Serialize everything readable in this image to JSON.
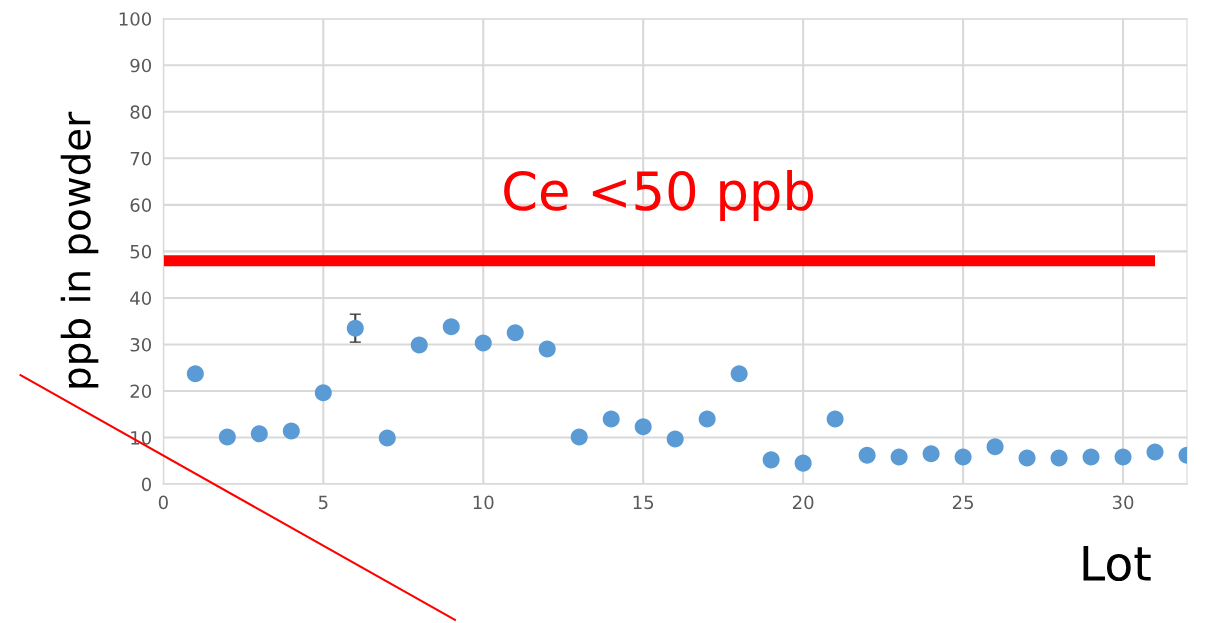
{
  "chart_data": {
    "type": "scatter",
    "xlabel": "Lot",
    "ylabel": "ppb in powder",
    "x": [
      1,
      2,
      3,
      4,
      5,
      6,
      7,
      8,
      9,
      10,
      11,
      12,
      13,
      14,
      15,
      16,
      17,
      18,
      19,
      20,
      21,
      22,
      23,
      24,
      25,
      26,
      27,
      28,
      29,
      30,
      31,
      32
    ],
    "series": [
      {
        "color": "#5b9bd5",
        "values": [
          23.7,
          10.1,
          10.8,
          11.4,
          19.6,
          33.5,
          9.9,
          29.9,
          33.8,
          30.3,
          32.5,
          29.0,
          10.1,
          14.0,
          12.3,
          9.7,
          14.0,
          23.7,
          5.2,
          4.5,
          14.0,
          6.2,
          5.8,
          6.5,
          5.8,
          8.0,
          5.6,
          5.6,
          5.8,
          5.8,
          6.9,
          6.2
        ],
        "errors": [
          null,
          null,
          null,
          null,
          null,
          3,
          null,
          null,
          null,
          null,
          null,
          null,
          null,
          null,
          null,
          null,
          null,
          null,
          null,
          null,
          null,
          null,
          null,
          null,
          null,
          null,
          null,
          null,
          null,
          null,
          null,
          null
        ]
      },
      {
        "type": "line",
        "color": "#ff0000",
        "x": [
          0,
          31
        ],
        "values": [
          48,
          48
        ],
        "marker": "none"
      }
    ],
    "annotations": [
      "Ce <50 ppb"
    ],
    "xlim": [
      0,
      32
    ],
    "xticks": [
      0,
      5,
      10,
      15,
      20,
      25,
      30
    ],
    "ylim": [
      0,
      100
    ],
    "yticks": [
      0,
      10,
      20,
      30,
      40,
      50,
      60,
      70,
      80,
      90,
      100
    ],
    "grid": true,
    "legend": false,
    "marker": "circle"
  }
}
